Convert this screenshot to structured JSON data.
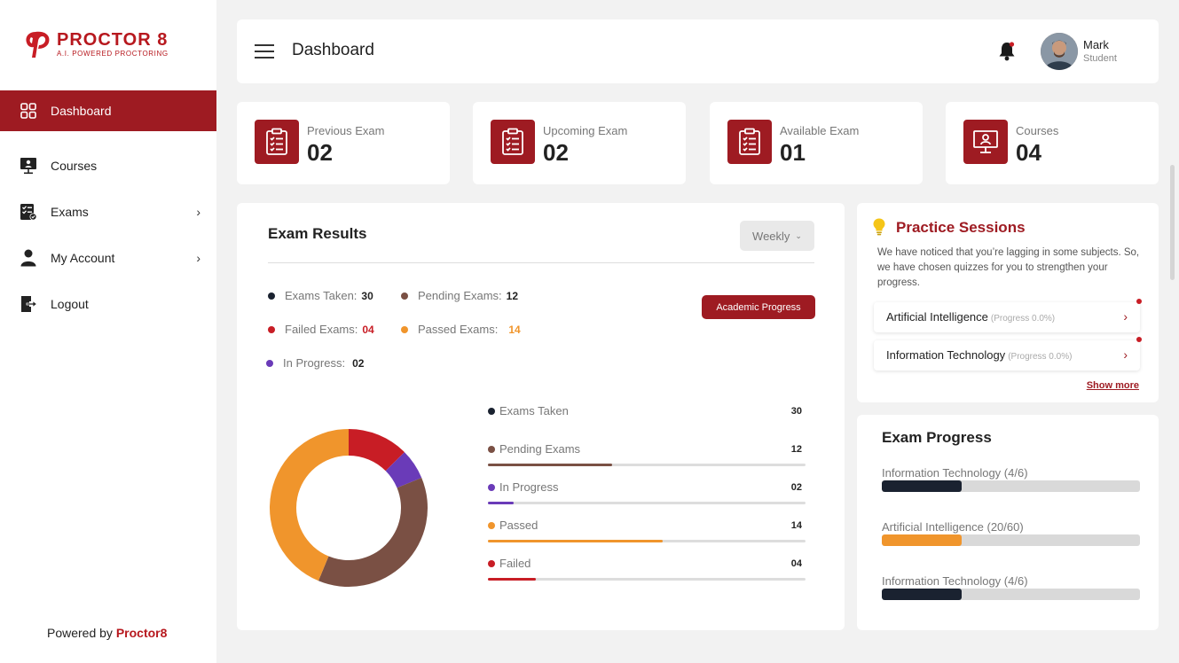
{
  "brand": {
    "title": "PROCTOR 8",
    "subtitle": "A.I. POWERED PROCTORING",
    "accent": "#9e1b22"
  },
  "sidebar": {
    "items": [
      {
        "label": "Dashboard",
        "icon": "grid-icon",
        "active": true
      },
      {
        "label": "Courses",
        "icon": "presentation-icon"
      },
      {
        "label": "Exams",
        "icon": "checklist-icon",
        "has_submenu": true
      },
      {
        "label": "My Account",
        "icon": "user-icon",
        "has_submenu": true
      },
      {
        "label": "Logout",
        "icon": "logout-icon"
      }
    ],
    "powered_prefix": "Powered by",
    "powered_brand": "Proctor8"
  },
  "header": {
    "title": "Dashboard",
    "user_name": "Mark",
    "user_role": "Student"
  },
  "stats": [
    {
      "label": "Previous Exam",
      "value": "02",
      "icon": "clipboard-icon"
    },
    {
      "label": "Upcoming Exam",
      "value": "02",
      "icon": "clipboard-icon"
    },
    {
      "label": "Available Exam",
      "value": "01",
      "icon": "clipboard-icon"
    },
    {
      "label": "Courses",
      "value": "04",
      "icon": "presentation-icon"
    }
  ],
  "exam_results": {
    "title": "Exam Results",
    "period": "Weekly",
    "academic_button": "Academic Progress",
    "summary": [
      {
        "label": "Exams Taken:",
        "value": "30",
        "color": "#1a2230"
      },
      {
        "label": "Pending Exams:",
        "value": "12",
        "color": "#7a5044"
      },
      {
        "label": "Failed Exams:",
        "value": "04",
        "color": "#c81d25"
      },
      {
        "label": "Passed Exams:",
        "value": "14",
        "color": "#f0952c"
      },
      {
        "label": "In Progress:",
        "value": "02",
        "color": "#6a3bb8"
      }
    ],
    "bars": [
      {
        "label": "Exams Taken",
        "value": "30",
        "color": "#1a2230",
        "fraction": 0
      },
      {
        "label": "Pending Exams",
        "value": "12",
        "color": "#7a5044",
        "fraction": 0.39
      },
      {
        "label": "In Progress",
        "value": "02",
        "color": "#6a3bb8",
        "fraction": 0.08
      },
      {
        "label": "Passed",
        "value": "14",
        "color": "#f0952c",
        "fraction": 0.55
      },
      {
        "label": "Failed",
        "value": "04",
        "color": "#c81d25",
        "fraction": 0.15
      }
    ],
    "donut": [
      {
        "name": "Failed",
        "value": 4,
        "color": "#c81d25"
      },
      {
        "name": "In Progress",
        "value": 2,
        "color": "#6a3bb8"
      },
      {
        "name": "Pending",
        "value": 12,
        "color": "#7a5044"
      },
      {
        "name": "Passed",
        "value": 14,
        "color": "#f0952c"
      }
    ]
  },
  "practice": {
    "title": "Practice Sessions",
    "description": "We have noticed that you’re lagging in some subjects. So, we have chosen quizzes for you to strengthen your progress.",
    "sessions": [
      {
        "name": "Artificial Intelligence",
        "progress": "(Progress 0.0%)"
      },
      {
        "name": "Information Technology",
        "progress": "(Progress 0.0%)"
      }
    ],
    "show_more": "Show more"
  },
  "exam_progress": {
    "title": "Exam Progress",
    "items": [
      {
        "label": "Information Technology (4/6)",
        "fraction": 0.31,
        "color": "#1a2230"
      },
      {
        "label": "Artificial Intelligence (20/60)",
        "fraction": 0.31,
        "color": "#f0952c"
      },
      {
        "label": "Information Technology (4/6)",
        "fraction": 0.31,
        "color": "#1a2230"
      }
    ]
  }
}
